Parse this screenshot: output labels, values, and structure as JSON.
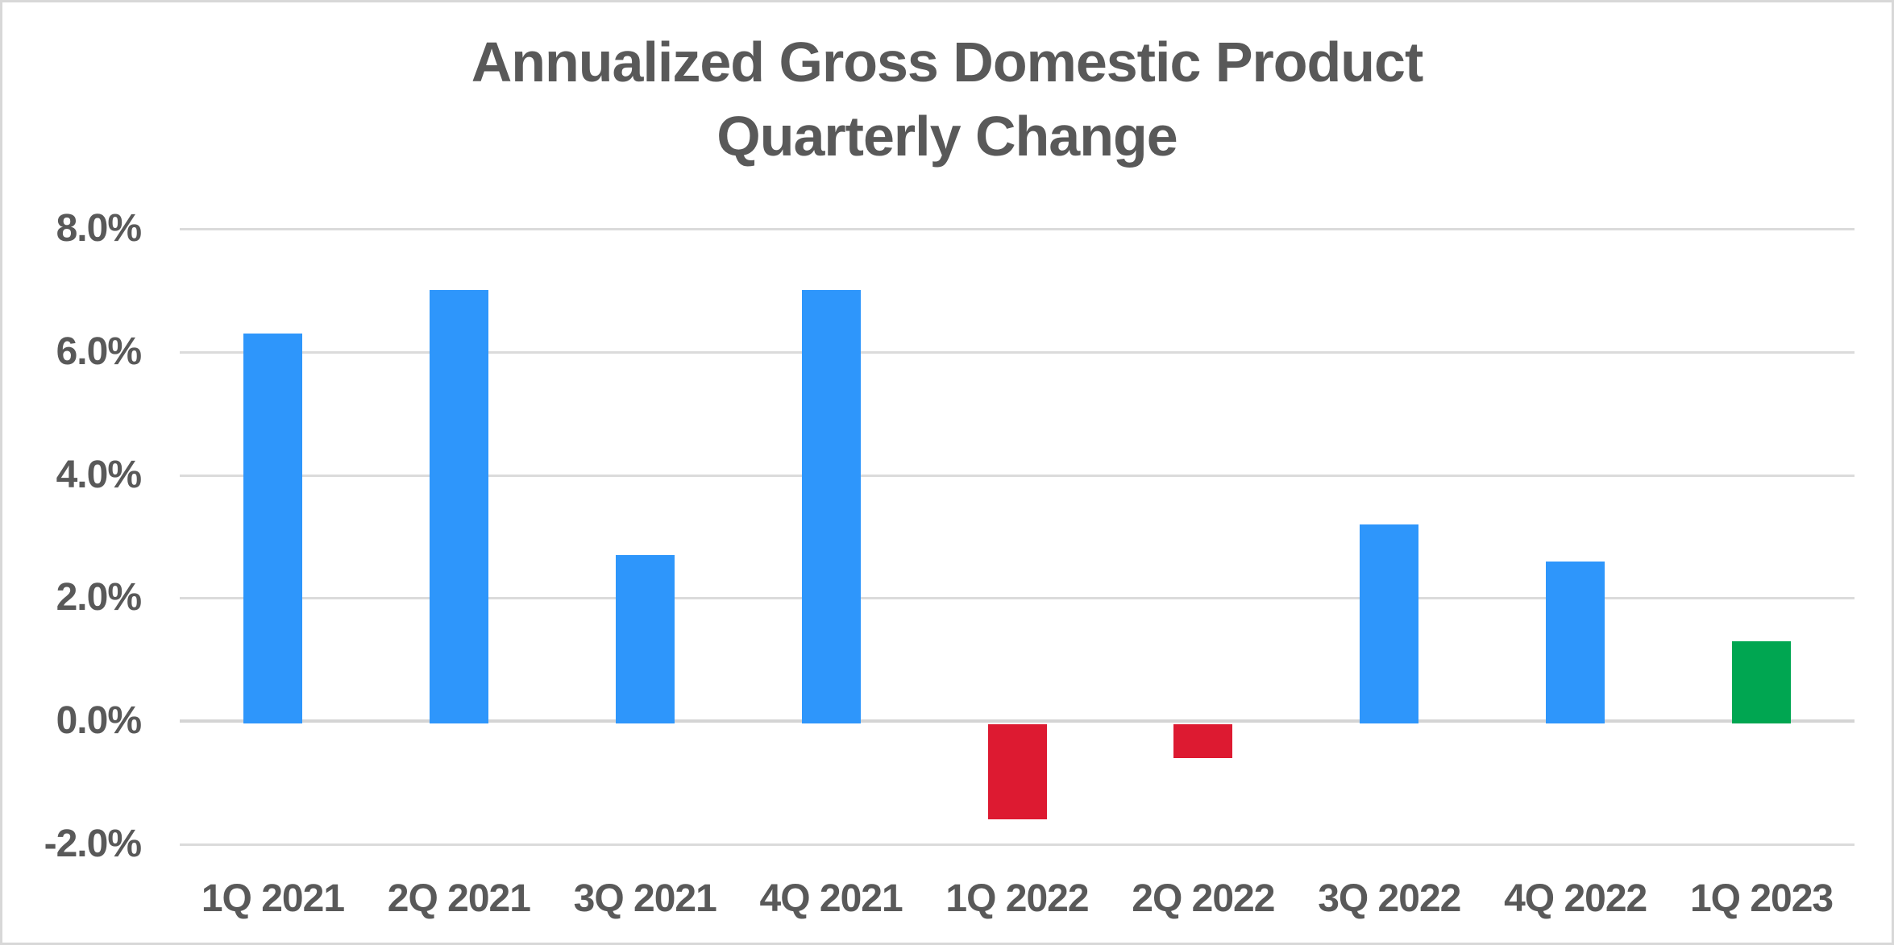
{
  "chart_data": {
    "type": "bar",
    "title": "Annualized Gross Domestic Product Quarterly Change",
    "title_line1": "Annualized Gross Domestic Product",
    "title_line2": "Quarterly Change",
    "categories": [
      "1Q 2021",
      "2Q 2021",
      "3Q 2021",
      "4Q 2021",
      "1Q 2022",
      "2Q 2022",
      "3Q 2022",
      "4Q 2022",
      "1Q 2023"
    ],
    "values": [
      6.3,
      7.0,
      2.7,
      7.0,
      -1.6,
      -0.6,
      3.2,
      2.6,
      1.3
    ],
    "bar_color_keys": [
      "positive",
      "positive",
      "positive",
      "positive",
      "negative",
      "negative",
      "positive",
      "positive",
      "latest"
    ],
    "y_ticks": [
      {
        "label": "8.0%",
        "value": 8
      },
      {
        "label": "6.0%",
        "value": 6
      },
      {
        "label": "4.0%",
        "value": 4
      },
      {
        "label": "2.0%",
        "value": 2
      },
      {
        "label": "0.0%",
        "value": 0
      },
      {
        "label": "-2.0%",
        "value": -2
      }
    ],
    "ylim": [
      -2,
      8
    ],
    "grid": true,
    "legend_position": "none",
    "xlabel": "",
    "ylabel": "",
    "colors": {
      "positive": "#2E96FB",
      "negative": "#DD1A31",
      "latest": "#00A651",
      "gridline": "#DBDBDB",
      "baseline": "#D4D4D4",
      "text": "#595959",
      "frame_border": "#D8D8D8",
      "background": "#FFFFFF"
    }
  }
}
